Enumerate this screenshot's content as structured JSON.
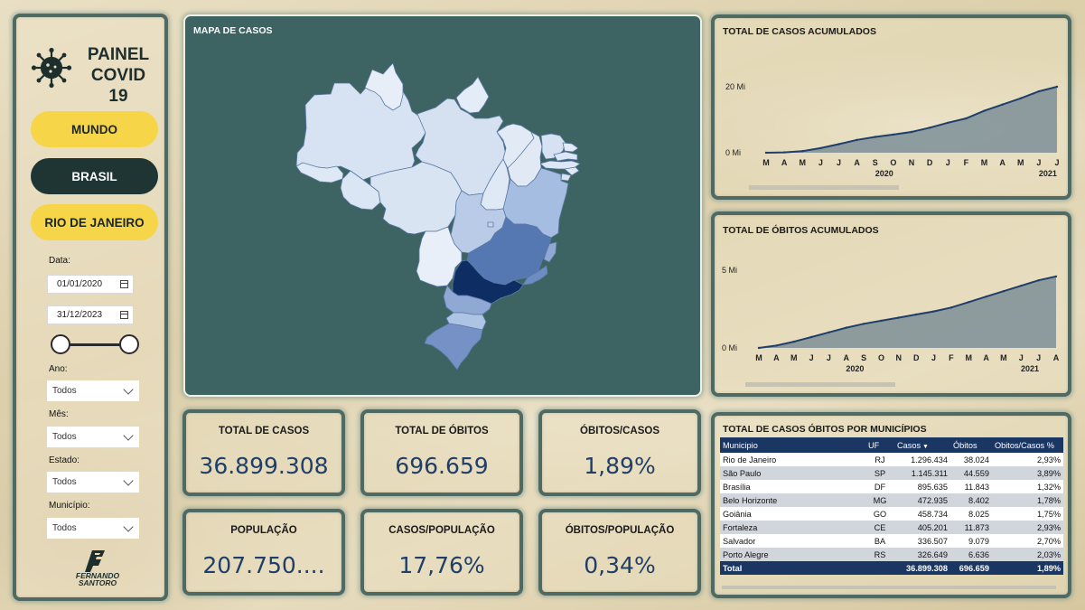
{
  "sidebar": {
    "title_line1": "PAINEL",
    "title_line2": "COVID 19",
    "nav": [
      "MUNDO",
      "BRASIL",
      "RIO DE JANEIRO"
    ],
    "data_label": "Data:",
    "date_start": "01/01/2020",
    "date_end": "31/12/2023",
    "filters": [
      {
        "label": "Ano:",
        "value": "Todos"
      },
      {
        "label": "Mês:",
        "value": "Todos"
      },
      {
        "label": "Estado:",
        "value": "Todos"
      },
      {
        "label": "Município:",
        "value": "Todos"
      }
    ],
    "logo_line1": "FERNANDO",
    "logo_line2": "SANTORO"
  },
  "map": {
    "title": "MAPA DE CASOS"
  },
  "kpis": [
    {
      "label": "TOTAL DE CASOS",
      "value": "36.899.308"
    },
    {
      "label": "TOTAL DE ÓBITOS",
      "value": "696.659"
    },
    {
      "label": "ÓBITOS/CASOS",
      "value": "1,89%"
    },
    {
      "label": "POPULAÇÃO",
      "value": "207.750...."
    },
    {
      "label": "CASOS/POPULAÇÃO",
      "value": "17,76%"
    },
    {
      "label": "ÓBITOS/POPULAÇÃO",
      "value": "0,34%"
    }
  ],
  "chart_data": [
    {
      "type": "area",
      "title": "TOTAL DE CASOS ACUMULADOS",
      "x": [
        "M",
        "A",
        "M",
        "J",
        "J",
        "A",
        "S",
        "O",
        "N",
        "D",
        "J",
        "F",
        "M",
        "A",
        "M",
        "J",
        "J"
      ],
      "year_labels": [
        "2020",
        "2021"
      ],
      "yticks": [
        "0 Mi",
        "20 Mi"
      ],
      "ylim": [
        0,
        20
      ],
      "values": [
        0.0,
        0.1,
        0.5,
        1.4,
        2.6,
        3.9,
        4.8,
        5.5,
        6.3,
        7.6,
        9.1,
        10.4,
        12.7,
        14.6,
        16.5,
        18.6,
        20.0
      ],
      "color": "#1f3f6a"
    },
    {
      "type": "area",
      "title": "TOTAL DE ÓBITOS ACUMULADOS",
      "x": [
        "M",
        "A",
        "M",
        "J",
        "J",
        "A",
        "S",
        "O",
        "N",
        "D",
        "J",
        "F",
        "M",
        "A",
        "M",
        "J",
        "J",
        "A"
      ],
      "year_labels": [
        "2020",
        "2021"
      ],
      "yticks": [
        "0 Mi",
        "5 Mi"
      ],
      "ylim": [
        0,
        5
      ],
      "values": [
        0.0,
        0.15,
        0.4,
        0.7,
        1.0,
        1.3,
        1.55,
        1.75,
        1.95,
        2.15,
        2.35,
        2.6,
        2.95,
        3.3,
        3.65,
        4.0,
        4.35,
        4.6
      ],
      "color": "#1f3f6a"
    }
  ],
  "table": {
    "title": "TOTAL DE CASOS ÓBITOS POR MUNICÍPIOS",
    "headers": [
      "Municipio",
      "UF",
      "Casos",
      "Óbitos",
      "Obitos/Casos %"
    ],
    "rows": [
      [
        "Rio de Janeiro",
        "RJ",
        "1.296.434",
        "38.024",
        "2,93%"
      ],
      [
        "São Paulo",
        "SP",
        "1.145.311",
        "44.559",
        "3,89%"
      ],
      [
        "Brasília",
        "DF",
        "895.635",
        "11.843",
        "1,32%"
      ],
      [
        "Belo Horizonte",
        "MG",
        "472.935",
        "8.402",
        "1,78%"
      ],
      [
        "Goiânia",
        "GO",
        "458.734",
        "8.025",
        "1,75%"
      ],
      [
        "Fortaleza",
        "CE",
        "405.201",
        "11.873",
        "2,93%"
      ],
      [
        "Salvador",
        "BA",
        "336.507",
        "9.079",
        "2,70%"
      ],
      [
        "Porto Alegre",
        "RS",
        "326.649",
        "6.636",
        "2,03%"
      ]
    ],
    "total": [
      "Total",
      "",
      "36.899.308",
      "696.659",
      "1,89%"
    ]
  },
  "colors": {
    "accent_yellow": "#f7d548",
    "dark": "#1f3534",
    "navy": "#1a3764",
    "map_bg": "#3d6462"
  }
}
